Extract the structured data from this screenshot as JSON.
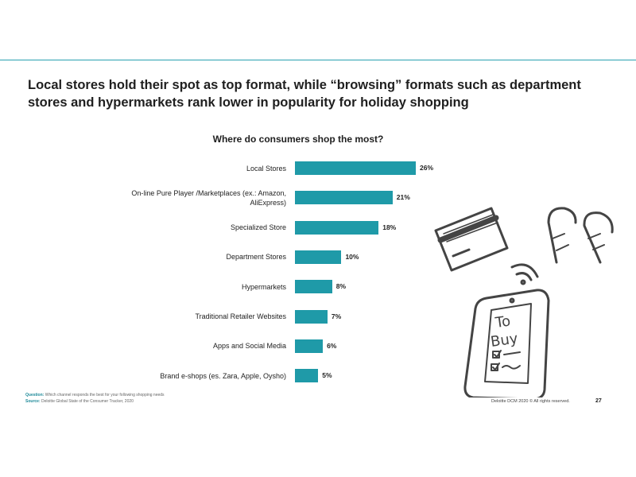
{
  "chart_data": {
    "type": "bar",
    "orientation": "horizontal",
    "title": "Local stores hold their spot as top format, while “browsing” formats such as department stores and hypermarkets rank lower in popularity for holiday shopping",
    "subtitle": "Where do consumers shop the most?",
    "categories": [
      "Local Stores",
      "On-line  Pure Player /Marketplaces (ex.: Amazon, AliExpress)",
      "Specialized Store",
      "Department Stores",
      "Hypermarkets",
      "Traditional Retailer Websites",
      "Apps and Social Media",
      "Brand e-shops (es. Zara, Apple, Oysho)"
    ],
    "values": [
      26,
      21,
      18,
      10,
      8,
      7,
      6,
      5
    ],
    "value_labels": [
      "26%",
      "21%",
      "18%",
      "10%",
      "8%",
      "7%",
      "6%",
      "5%"
    ],
    "color": "#1f9aa8"
  },
  "footer": {
    "question_label": "Question:",
    "question": "Which channel responds the best for your following shopping needs",
    "source_label": "Source:",
    "source": "Deloitte Global State of the Consumer Tracker, 2020",
    "rights": "Deloitte DCM 2020 ©  All rights reserved.",
    "page": "27"
  }
}
